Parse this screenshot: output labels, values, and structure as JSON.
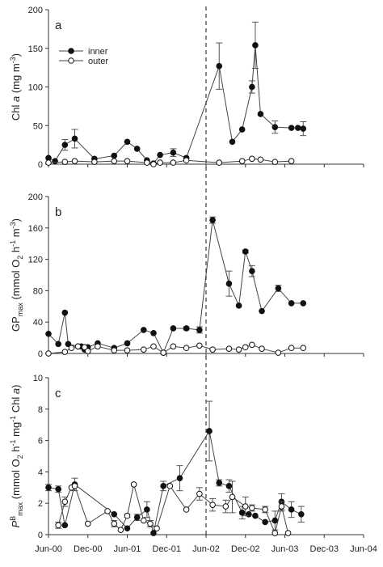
{
  "chart_data": {
    "type": "line",
    "x_tick_labels": [
      "Jun-00",
      "Dec-00",
      "Jun-01",
      "Dec-01",
      "Jun-02",
      "Dec-02",
      "Jun-03",
      "Dec-03",
      "Jun-04"
    ],
    "x_range_months": [
      0,
      48
    ],
    "vertical_dashed_line_at": "Jun-02",
    "legend": [
      "inner",
      "outer"
    ],
    "panels": [
      {
        "letter": "a",
        "ylabel_parts": [
          "Chl ",
          "a",
          " (mg m",
          "-3",
          ")"
        ],
        "ylim": [
          0,
          200
        ],
        "yticks": [
          "0",
          "50",
          "100",
          "150",
          "200"
        ],
        "series": [
          {
            "name": "inner",
            "filled": true,
            "x": [
              0,
              1,
              2.5,
              4,
              7,
              10,
              12,
              13.5,
              15,
              16,
              17,
              19,
              21,
              26,
              28,
              29.5,
              31,
              31.5,
              32.3,
              34.5,
              37,
              38,
              38.8
            ],
            "y": [
              8,
              4,
              25,
              33,
              7,
              11,
              29,
              20,
              5,
              1,
              12,
              15,
              8,
              127,
              29,
              45,
              100,
              154,
              65,
              48,
              47,
              47,
              46
            ],
            "err": [
              0,
              0,
              7,
              12,
              0,
              0,
              0,
              0,
              0,
              0,
              0,
              5,
              0,
              30,
              0,
              0,
              8,
              30,
              0,
              8,
              0,
              0,
              9
            ]
          },
          {
            "name": "outer",
            "filled": false,
            "x": [
              0,
              2.5,
              4,
              7,
              10,
              12,
              15,
              16,
              17,
              19,
              21,
              26,
              29.5,
              31,
              32.3,
              34.5,
              37
            ],
            "y": [
              2,
              3,
              4,
              3,
              4,
              4,
              2,
              0,
              2,
              2,
              5,
              2,
              4,
              7,
              6,
              3,
              4
            ],
            "err": [
              0,
              0,
              0,
              0,
              0,
              0,
              0,
              0,
              0,
              0,
              0,
              0,
              0,
              0,
              0,
              0,
              0
            ]
          }
        ]
      },
      {
        "letter": "b",
        "ylabel_parts": [
          "GP",
          "max",
          " (mmol O",
          "2",
          " h",
          "-1",
          " m",
          "-3",
          ")"
        ],
        "ylim": [
          0,
          200
        ],
        "yticks": [
          "0",
          "40",
          "80",
          "120",
          "160",
          "200"
        ],
        "series": [
          {
            "name": "inner",
            "filled": true,
            "x": [
              0,
              1.5,
              2.5,
              3,
              4.5,
              5,
              5.5,
              6,
              7.5,
              10,
              12,
              14.5,
              16,
              17.5,
              19,
              21,
              23,
              25,
              27.5,
              29,
              30,
              31,
              32.5,
              35,
              37,
              38.8
            ],
            "y": [
              25,
              12,
              52,
              12,
              9,
              9,
              5,
              8,
              13,
              7,
              13,
              30,
              26,
              1,
              32,
              32,
              30,
              170,
              89,
              61,
              130,
              105,
              54,
              83,
              64,
              64
            ],
            "err": [
              0,
              0,
              0,
              0,
              0,
              0,
              0,
              0,
              0,
              0,
              0,
              0,
              0,
              0,
              0,
              2,
              4,
              4,
              16,
              0,
              2,
              7,
              0,
              4,
              0,
              0
            ]
          },
          {
            "name": "outer",
            "filled": false,
            "x": [
              0,
              2.5,
              3.5,
              4.5,
              5.5,
              6,
              7.5,
              10,
              12,
              14.5,
              16,
              17.5,
              19,
              21,
              23,
              25,
              27.5,
              29,
              30,
              31,
              32.5,
              35,
              37,
              38.8
            ],
            "y": [
              0,
              2,
              7,
              9,
              8,
              3,
              9,
              4,
              4,
              5,
              9,
              1,
              9,
              7,
              10,
              5,
              6,
              5,
              8,
              11,
              6,
              1,
              7,
              7
            ],
            "err": [
              0,
              0,
              0,
              0,
              0,
              0,
              0,
              0,
              0,
              0,
              0,
              0,
              0,
              0,
              0,
              0,
              0,
              0,
              0,
              0,
              0,
              0,
              0,
              0
            ]
          }
        ]
      },
      {
        "letter": "c",
        "ylabel_parts": [
          "P",
          "B",
          "max",
          " (mmol O",
          "2",
          " h",
          "-1",
          " mg",
          "-1",
          " Chl ",
          "a",
          ")"
        ],
        "ylim": [
          0,
          10
        ],
        "yticks": [
          "0",
          "2",
          "4",
          "6",
          "8",
          "10"
        ],
        "series": [
          {
            "name": "inner",
            "filled": true,
            "x": [
              0,
              1.5,
              2.5,
              4,
              10,
              12,
              13.5,
              15,
              16,
              17.5,
              20,
              24.5,
              26,
              27.5,
              29.5,
              30.5,
              31.5,
              33,
              34.5,
              35.5,
              37,
              38.5
            ],
            "y": [
              3,
              2.9,
              0.6,
              3.2,
              1.3,
              0.4,
              1.1,
              1.6,
              0.1,
              3.1,
              3.6,
              6.6,
              3.3,
              3.1,
              1.4,
              1.3,
              1.2,
              0.8,
              0.9,
              2.1,
              1.6,
              1.3
            ],
            "err": [
              0.2,
              0.2,
              0,
              0.4,
              0,
              0,
              0.2,
              0.5,
              0,
              0.3,
              0.8,
              1.9,
              0.2,
              0.4,
              0.4,
              0,
              0,
              0,
              0.6,
              0.5,
              0.5,
              0.5
            ]
          },
          {
            "name": "outer",
            "filled": false,
            "x": [
              1.5,
              2.5,
              3.5,
              4,
              6,
              9,
              10,
              11,
              12,
              13,
              14.5,
              15.5,
              16.5,
              18.5,
              21,
              23,
              25,
              27,
              28,
              30,
              31,
              33,
              34.5,
              35.5,
              36.5
            ],
            "y": [
              0.6,
              2.1,
              3.0,
              3.1,
              0.7,
              1.5,
              0.7,
              0.3,
              1.2,
              3.2,
              0.9,
              0.7,
              0.4,
              3.1,
              1.6,
              2.6,
              1.9,
              1.8,
              2.4,
              1.8,
              1.7,
              1.6,
              0.1,
              1.8,
              0.1
            ],
            "err": [
              0.2,
              0.3,
              0,
              0,
              0,
              0,
              0.2,
              0,
              0.1,
              0,
              0,
              0.2,
              0,
              0,
              0,
              0.4,
              0.4,
              0.4,
              1.0,
              0.6,
              0.2,
              0.2,
              0,
              0.3,
              0
            ]
          }
        ]
      }
    ]
  }
}
